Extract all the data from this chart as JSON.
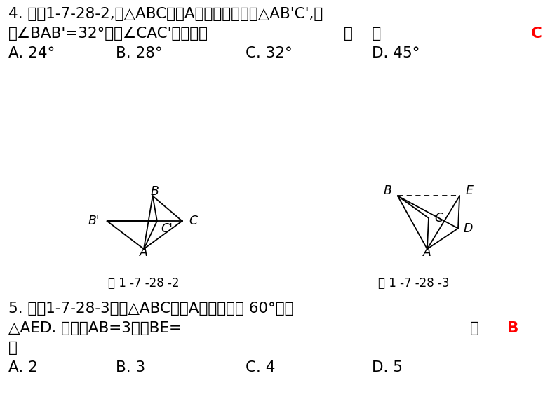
{
  "bg_color": "#ffffff",
  "text_color": "#000000",
  "red_color": "#ff0000",
  "fig1_caption": "图 1 -7 -28 -2",
  "fig2_caption": "图 1 -7 -28 -3",
  "fig1_points": {
    "A": [
      0.0,
      0.0
    ],
    "B": [
      0.12,
      0.72
    ],
    "C": [
      0.52,
      0.38
    ],
    "Bprime": [
      -0.5,
      0.38
    ],
    "Cprime": [
      0.18,
      0.38
    ]
  },
  "fig2_points": {
    "A": [
      0.18,
      0.0
    ],
    "B": [
      -0.22,
      0.72
    ],
    "C": [
      0.2,
      0.42
    ],
    "E": [
      0.62,
      0.72
    ],
    "D": [
      0.6,
      0.28
    ]
  }
}
